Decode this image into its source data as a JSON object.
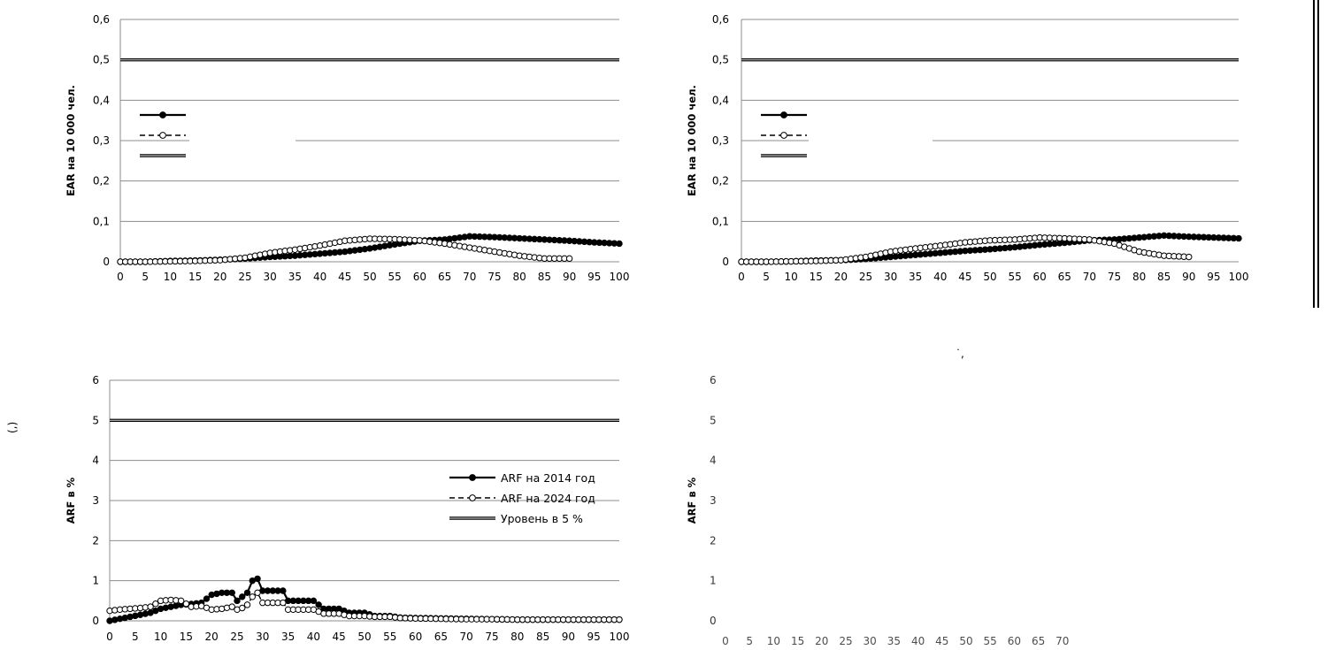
{
  "chart_data": [
    {
      "type": "line",
      "ylabel": "EAR на 10 000 чел.",
      "xlabel": "",
      "ylim": [
        0,
        0.6
      ],
      "yticks": [
        0,
        0.1,
        0.2,
        0.3,
        0.4,
        0.5,
        0.6
      ],
      "ytick_labels": [
        "0",
        "0,1",
        "0,2",
        "0,3",
        "0,4",
        "0,5",
        "0,6"
      ],
      "xticks": [
        0,
        5,
        10,
        15,
        20,
        25,
        30,
        35,
        40,
        45,
        50,
        55,
        60,
        65,
        70,
        75,
        80,
        85,
        90,
        95,
        100
      ],
      "grid": true,
      "legend_position": "left",
      "legend": [
        "",
        "",
        ""
      ],
      "reference_level": 0.5,
      "series": [
        {
          "style": "solid-filled",
          "x": [
            0,
            5,
            10,
            15,
            20,
            25,
            30,
            35,
            40,
            45,
            50,
            55,
            60,
            65,
            70,
            75,
            80,
            85,
            90,
            95,
            100
          ],
          "y": [
            0,
            0,
            0.002,
            0.003,
            0.005,
            0.008,
            0.012,
            0.015,
            0.02,
            0.025,
            0.033,
            0.043,
            0.052,
            0.055,
            0.063,
            0.061,
            0.058,
            0.055,
            0.052,
            0.048,
            0.045
          ]
        },
        {
          "style": "dashed-open",
          "x": [
            0,
            5,
            10,
            15,
            20,
            25,
            30,
            35,
            40,
            45,
            50,
            55,
            60,
            65,
            70,
            75,
            80,
            85,
            90
          ],
          "y": [
            0,
            0,
            0.001,
            0.002,
            0.004,
            0.01,
            0.022,
            0.03,
            0.04,
            0.052,
            0.057,
            0.056,
            0.053,
            0.045,
            0.035,
            0.025,
            0.015,
            0.008,
            0.008
          ]
        }
      ]
    },
    {
      "type": "line",
      "ylabel": "EAR на 10 000 чел.",
      "xlabel": "",
      "ylim": [
        0,
        0.6
      ],
      "yticks": [
        0,
        0.1,
        0.2,
        0.3,
        0.4,
        0.5,
        0.6
      ],
      "ytick_labels": [
        "0",
        "0,1",
        "0,2",
        "0,3",
        "0,4",
        "0,5",
        "0,6"
      ],
      "xticks": [
        0,
        5,
        10,
        15,
        20,
        25,
        30,
        35,
        40,
        45,
        50,
        55,
        60,
        65,
        70,
        75,
        80,
        85,
        90,
        95,
        100
      ],
      "grid": true,
      "legend_position": "left",
      "legend": [
        "",
        "",
        ""
      ],
      "reference_level": 0.5,
      "series": [
        {
          "style": "solid-filled",
          "x": [
            0,
            5,
            10,
            15,
            20,
            25,
            30,
            35,
            40,
            45,
            50,
            55,
            60,
            65,
            70,
            75,
            80,
            85,
            90,
            95,
            100
          ],
          "y": [
            0,
            0,
            0.001,
            0.003,
            0.004,
            0.007,
            0.012,
            0.017,
            0.022,
            0.027,
            0.031,
            0.036,
            0.042,
            0.047,
            0.053,
            0.055,
            0.06,
            0.065,
            0.062,
            0.06,
            0.058
          ]
        },
        {
          "style": "dashed-open",
          "x": [
            0,
            5,
            10,
            15,
            20,
            25,
            30,
            35,
            40,
            45,
            50,
            55,
            60,
            65,
            70,
            75,
            80,
            85,
            90
          ],
          "y": [
            0,
            0,
            0.001,
            0.002,
            0.004,
            0.012,
            0.025,
            0.033,
            0.04,
            0.048,
            0.053,
            0.055,
            0.06,
            0.058,
            0.055,
            0.045,
            0.025,
            0.015,
            0.012
          ]
        }
      ]
    },
    {
      "type": "line",
      "ylabel": "ARF в %",
      "xlabel": "",
      "ylim": [
        0,
        6
      ],
      "yticks": [
        0,
        1,
        2,
        3,
        4,
        5,
        6
      ],
      "ytick_labels": [
        "0",
        "1",
        "2",
        "3",
        "4",
        "5",
        "6"
      ],
      "xticks": [
        0,
        5,
        10,
        15,
        20,
        25,
        30,
        35,
        40,
        45,
        50,
        55,
        60,
        65,
        70,
        75,
        80,
        85,
        90,
        95,
        100
      ],
      "grid": true,
      "legend_position": "right",
      "legend": [
        "ARF на 2014 год",
        "ARF на 2024 год",
        "Уровень в 5 %"
      ],
      "reference_level": 5,
      "series": [
        {
          "name": "ARF на 2014 год",
          "style": "solid-filled",
          "x": [
            0,
            2,
            4,
            6,
            8,
            10,
            12,
            14,
            16,
            18,
            20,
            22,
            24,
            25,
            26,
            27,
            28,
            29,
            30,
            32,
            34,
            35,
            37,
            40,
            42,
            45,
            47,
            50,
            52,
            55,
            57,
            60,
            65,
            70,
            75,
            80,
            85,
            90,
            95,
            100
          ],
          "y": [
            0,
            0.05,
            0.1,
            0.15,
            0.2,
            0.3,
            0.35,
            0.4,
            0.42,
            0.45,
            0.65,
            0.7,
            0.7,
            0.5,
            0.6,
            0.7,
            1.0,
            1.05,
            0.75,
            0.75,
            0.75,
            0.5,
            0.5,
            0.5,
            0.3,
            0.3,
            0.2,
            0.2,
            0.12,
            0.12,
            0.08,
            0.07,
            0.06,
            0.05,
            0.04,
            0.03,
            0.03,
            0.03,
            0.03,
            0.03
          ]
        },
        {
          "name": "ARF на 2024 год",
          "style": "dashed-open",
          "x": [
            0,
            2,
            4,
            6,
            8,
            10,
            12,
            14,
            16,
            18,
            20,
            22,
            24,
            25,
            26,
            27,
            28,
            29,
            30,
            32,
            34,
            35,
            37,
            40,
            42,
            45,
            47,
            50,
            52,
            55,
            57,
            60,
            65,
            70,
            75,
            80,
            85,
            90,
            95,
            100
          ],
          "y": [
            0.25,
            0.28,
            0.3,
            0.32,
            0.35,
            0.5,
            0.52,
            0.5,
            0.35,
            0.37,
            0.28,
            0.3,
            0.35,
            0.28,
            0.32,
            0.4,
            0.6,
            0.7,
            0.45,
            0.45,
            0.45,
            0.28,
            0.28,
            0.28,
            0.18,
            0.18,
            0.12,
            0.12,
            0.1,
            0.1,
            0.07,
            0.06,
            0.05,
            0.04,
            0.04,
            0.03,
            0.03,
            0.03,
            0.03,
            0.03
          ]
        }
      ]
    },
    {
      "type": "line",
      "ylabel": "ARF в %",
      "xlabel": "",
      "ytick_labels": [
        "0",
        "1",
        "2",
        "3",
        "4",
        "5",
        "6"
      ],
      "xticks_visible": [
        "0",
        "5",
        "10",
        "15",
        "20",
        "25",
        "30",
        "35",
        "40",
        "45",
        "50",
        "55",
        "60",
        "65",
        "70"
      ],
      "grid": false,
      "series": []
    }
  ]
}
